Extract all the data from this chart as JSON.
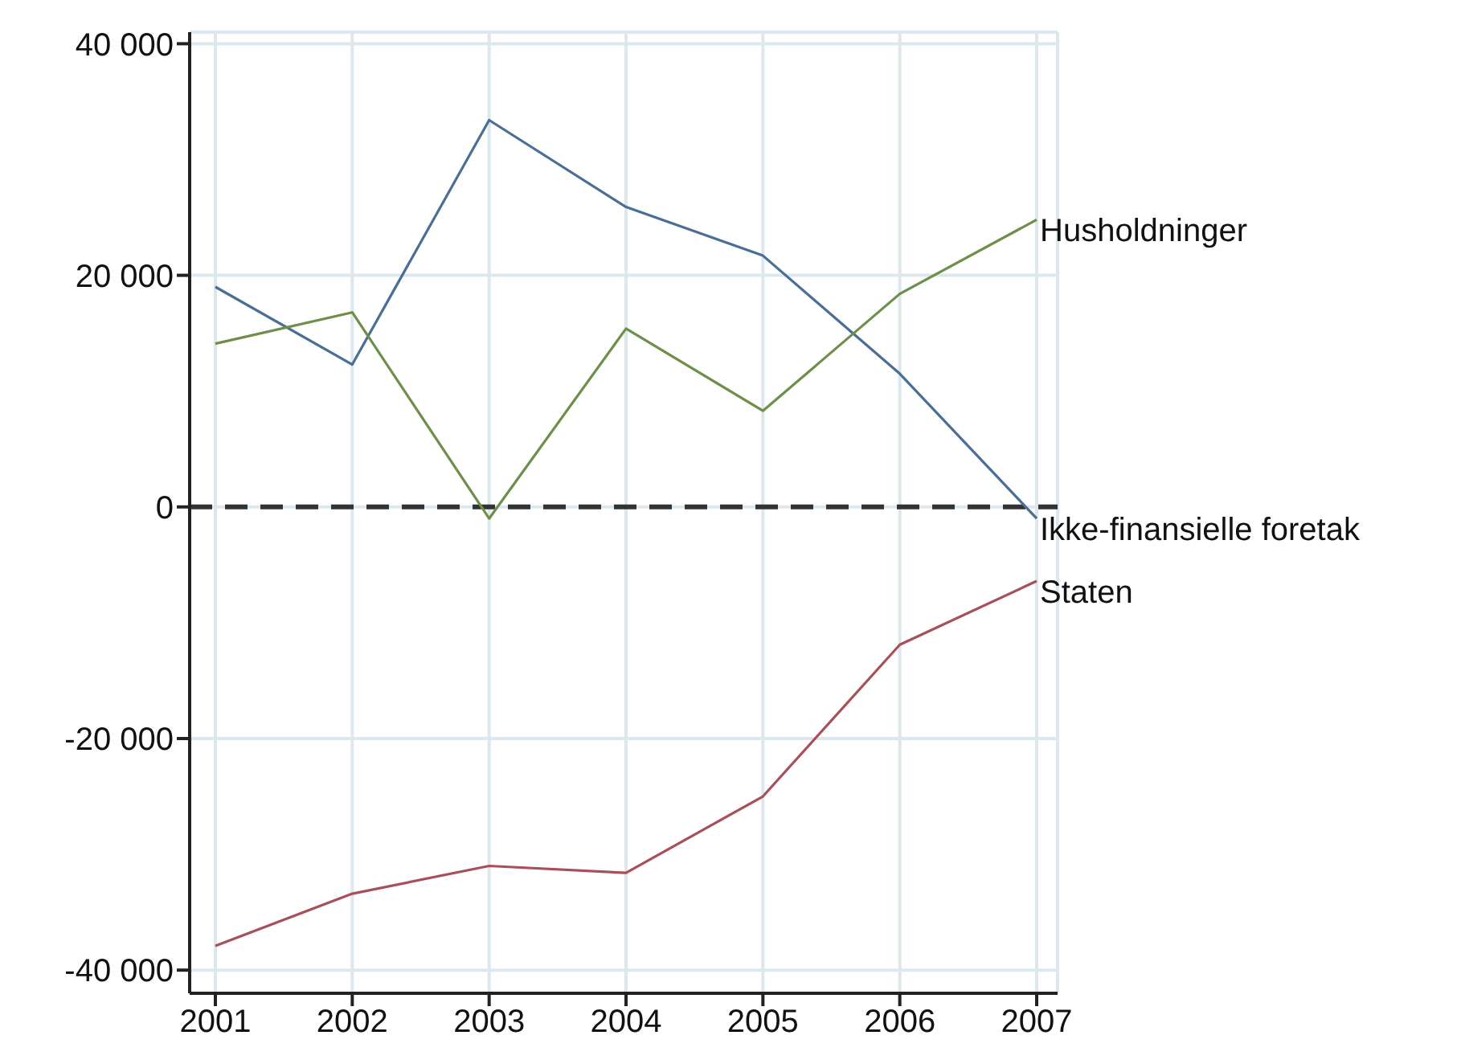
{
  "chart_data": {
    "type": "line",
    "categories": [
      "2001",
      "2002",
      "2003",
      "2004",
      "2005",
      "2006",
      "2007"
    ],
    "series": [
      {
        "name": "Ikke-finansielle foretak",
        "color": "#4a6f96",
        "values": [
          19000,
          12300,
          33400,
          25900,
          21700,
          11500,
          -1000
        ]
      },
      {
        "name": "Husholdninger",
        "color": "#6e8f4a",
        "values": [
          14100,
          16800,
          -1000,
          15400,
          8300,
          18400,
          24800
        ]
      },
      {
        "name": "Staten",
        "color": "#a8505a",
        "values": [
          -37900,
          -33400,
          -31000,
          -31600,
          -25000,
          -11900,
          -6400
        ]
      }
    ],
    "ylim": [
      -42000,
      41000
    ],
    "yticks": [
      {
        "value": -40000,
        "label": "-40 000"
      },
      {
        "value": -20000,
        "label": "-20 000"
      },
      {
        "value": 0,
        "label": "0"
      },
      {
        "value": 20000,
        "label": "20 000"
      },
      {
        "value": 40000,
        "label": "40 000"
      }
    ],
    "grid": true,
    "marker": "none",
    "line_style": "solid",
    "ref_lines": [
      {
        "axis": "y",
        "value": 0,
        "color": "#333333",
        "line_style": "dashed"
      }
    ]
  }
}
